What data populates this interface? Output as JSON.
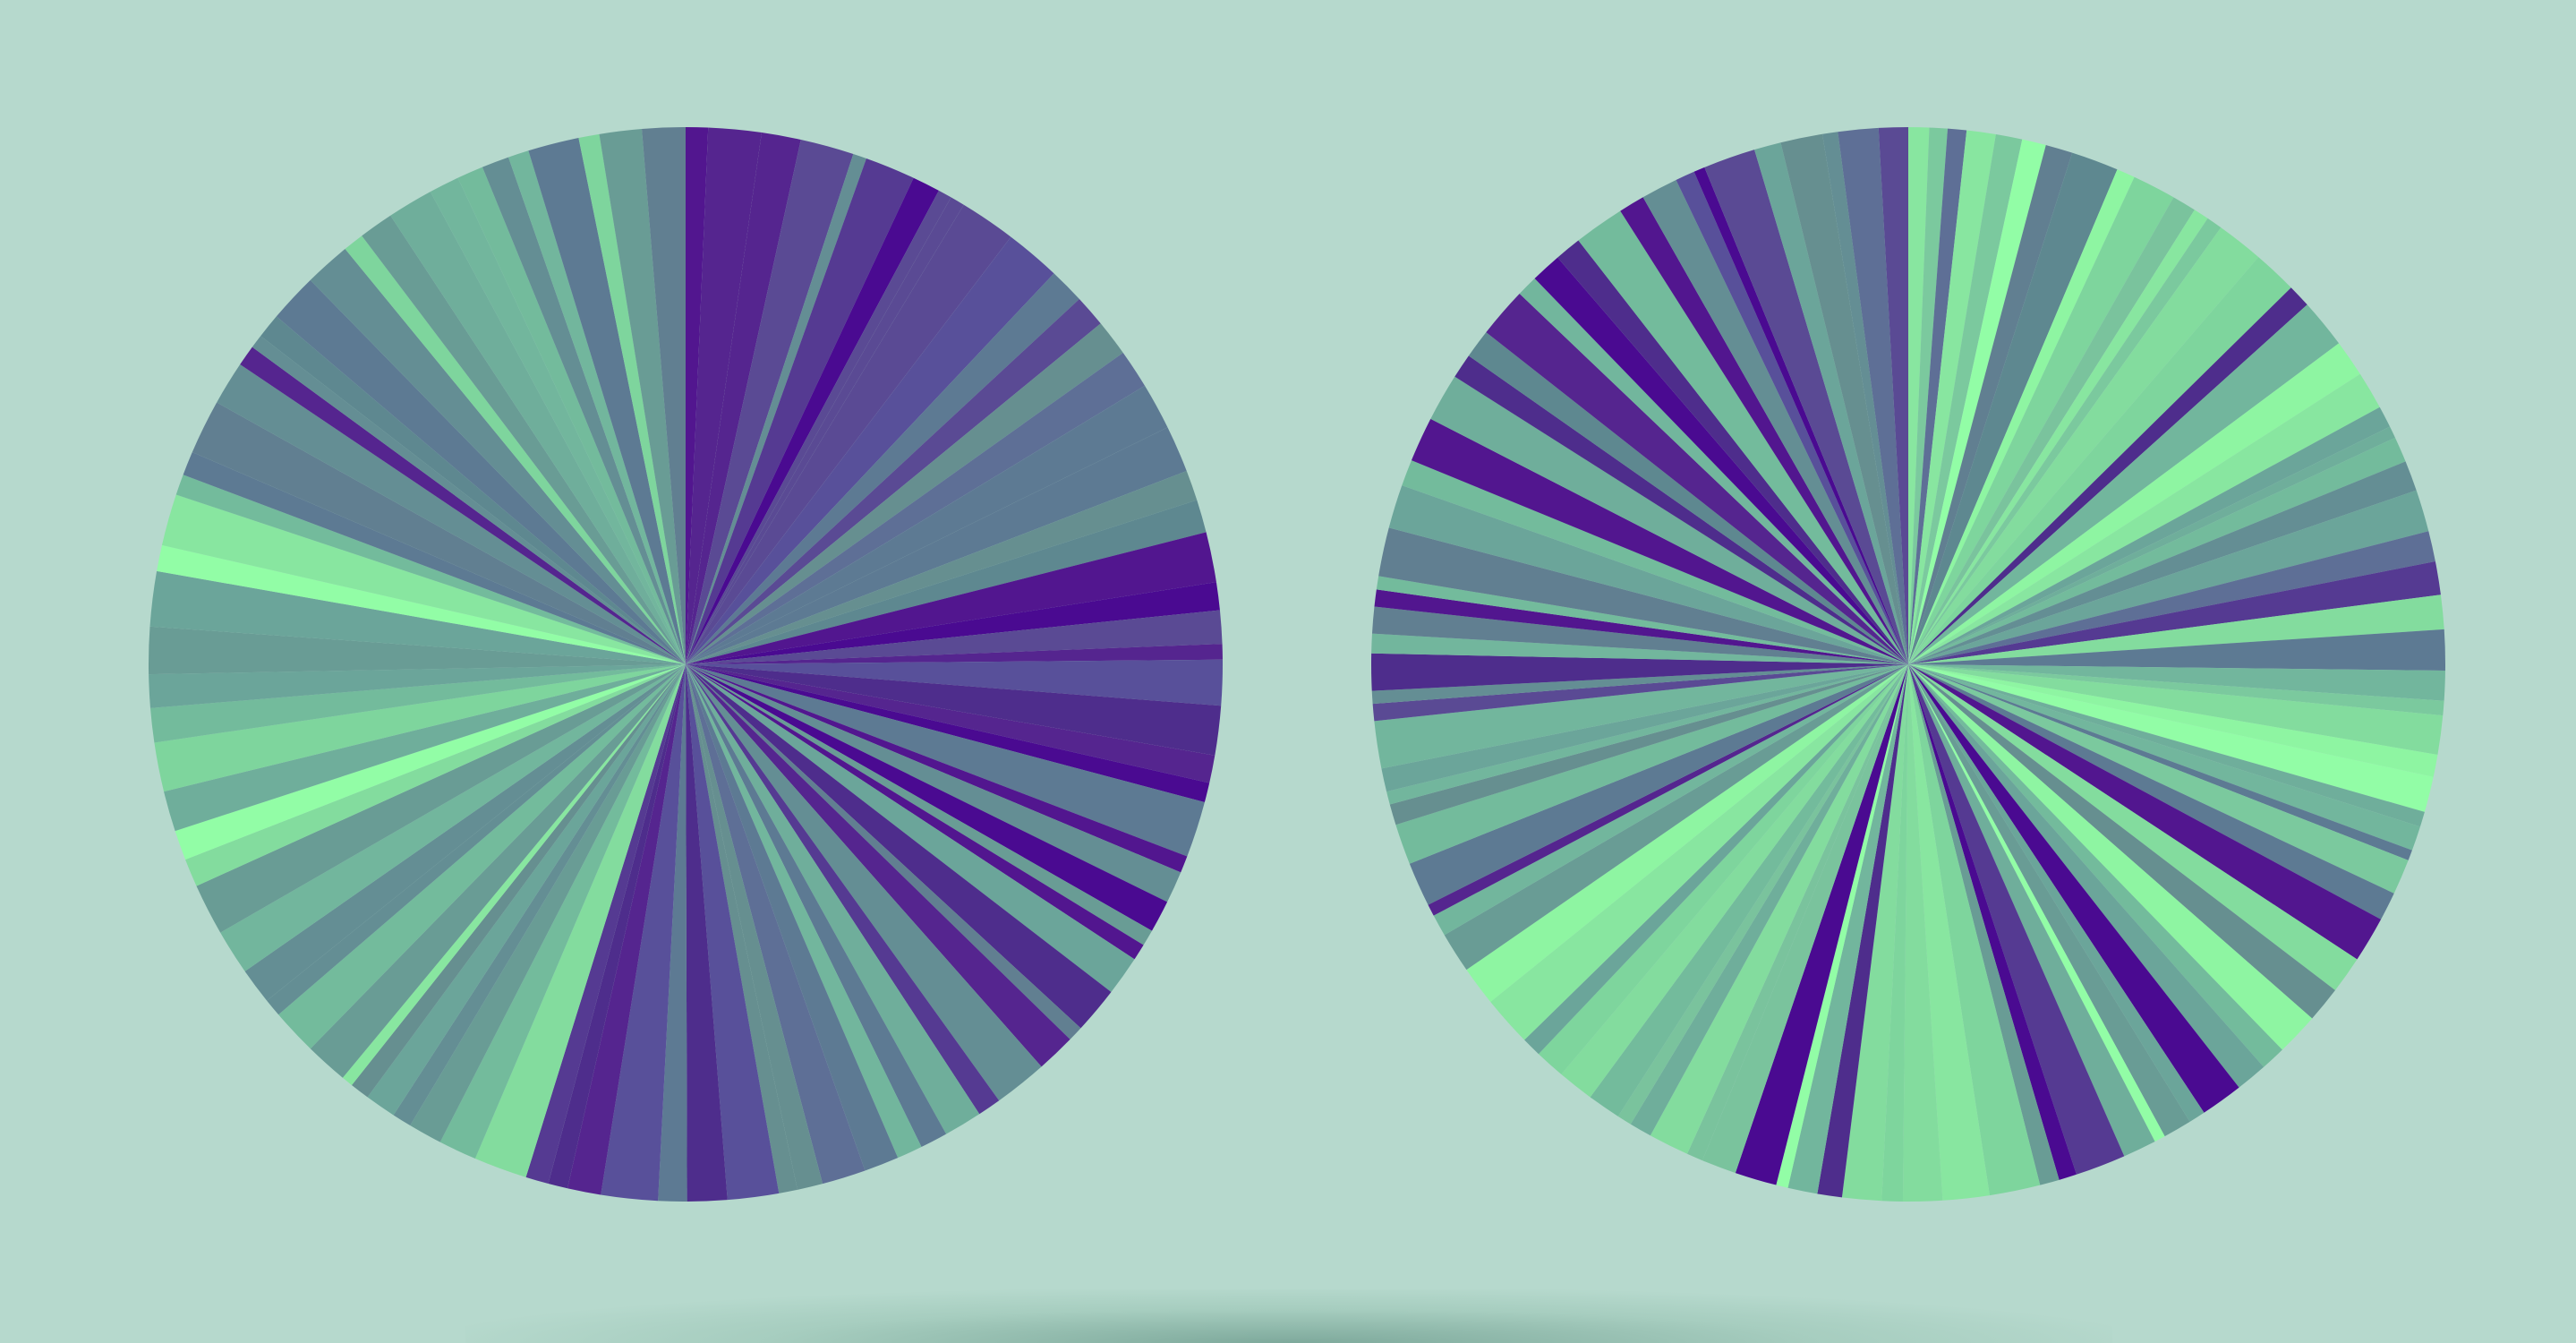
{
  "colors": {
    "background": "#b6d9cd",
    "palette_purple": [
      "#4a0a91",
      "#52168f",
      "#55258f",
      "#4e2d8c",
      "#553a92",
      "#5a4a94",
      "#58509a"
    ],
    "palette_slate": [
      "#5e6f96",
      "#5d7a93",
      "#617f91",
      "#5e8890",
      "#648e94",
      "#668f90"
    ],
    "palette_teal": [
      "#699c95",
      "#6ba59a",
      "#6fae9b",
      "#72b69d",
      "#73bb9c"
    ],
    "palette_green": [
      "#7ac39d",
      "#7bc99e",
      "#7ed59d",
      "#83dc9e",
      "#88e6a0",
      "#8ef5a2",
      "#92fda6"
    ]
  },
  "wheels": [
    {
      "id": "left-wheel",
      "slices": 96,
      "seed": 7,
      "dominant": "purple-right-green-left"
    },
    {
      "id": "right-wheel",
      "slices": 110,
      "seed": 21,
      "dominant": "green"
    }
  ]
}
